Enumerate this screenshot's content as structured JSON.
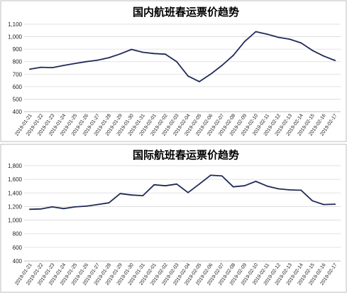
{
  "chart_data": [
    {
      "type": "line",
      "title": "国内航班春运票价趋势",
      "xlabel": "",
      "ylabel": "",
      "ylim": [
        400,
        1100
      ],
      "y_ticks": [
        "400",
        "500",
        "600",
        "700",
        "800",
        "900",
        "1,000",
        "1,100"
      ],
      "grid": "horizontal",
      "categories": [
        "2019-01-21",
        "2019-01-22",
        "2019-01-23",
        "2019-01-24",
        "2019-01-25",
        "2019-01-26",
        "2019-01-27",
        "2019-01-28",
        "2019-01-29",
        "2019-01-30",
        "2019-01-31",
        "2019-02-01",
        "2019-02-02",
        "2019-02-03",
        "2019-02-04",
        "2019-02-05",
        "2019-02-06",
        "2019-02-07",
        "2019-02-08",
        "2019-02-09",
        "2019-02-10",
        "2019-02-11",
        "2019-02-12",
        "2019-02-13",
        "2019-02-14",
        "2019-02-15",
        "2019-02-16",
        "2019-02-17"
      ],
      "series": [
        {
          "values": [
            740,
            755,
            752,
            770,
            785,
            800,
            812,
            832,
            862,
            898,
            875,
            865,
            860,
            800,
            685,
            640,
            700,
            770,
            850,
            960,
            1040,
            1020,
            995,
            980,
            950,
            890,
            845,
            810
          ],
          "color": "#1f2b57"
        }
      ]
    },
    {
      "type": "line",
      "title": "国际航班春运票价趋势",
      "xlabel": "",
      "ylabel": "",
      "ylim": [
        400,
        1800
      ],
      "y_ticks": [
        "400",
        "600",
        "800",
        "1,000",
        "1,200",
        "1,400",
        "1,600",
        "1,800"
      ],
      "grid": "horizontal",
      "categories": [
        "2019-01-21",
        "2019-01-22",
        "2019-01-23",
        "2019-01-24",
        "2019-01-25",
        "2019-01-26",
        "2019-01-27",
        "2019-01-28",
        "2019-01-29",
        "2019-01-30",
        "2019-01-31",
        "2019-02-01",
        "2019-02-02",
        "2019-02-03",
        "2019-02-04",
        "2019-02-05",
        "2019-02-06",
        "2019-02-07",
        "2019-02-08",
        "2019-02-09",
        "2019-02-10",
        "2019-02-11",
        "2019-02-12",
        "2019-02-13",
        "2019-02-14",
        "2019-02-15",
        "2019-02-16",
        "2019-02-17"
      ],
      "series": [
        {
          "values": [
            1160,
            1165,
            1195,
            1170,
            1195,
            1205,
            1230,
            1255,
            1390,
            1370,
            1360,
            1520,
            1505,
            1530,
            1405,
            1530,
            1660,
            1650,
            1490,
            1505,
            1570,
            1500,
            1460,
            1445,
            1440,
            1285,
            1230,
            1235
          ],
          "color": "#1f2b57"
        }
      ]
    }
  ]
}
